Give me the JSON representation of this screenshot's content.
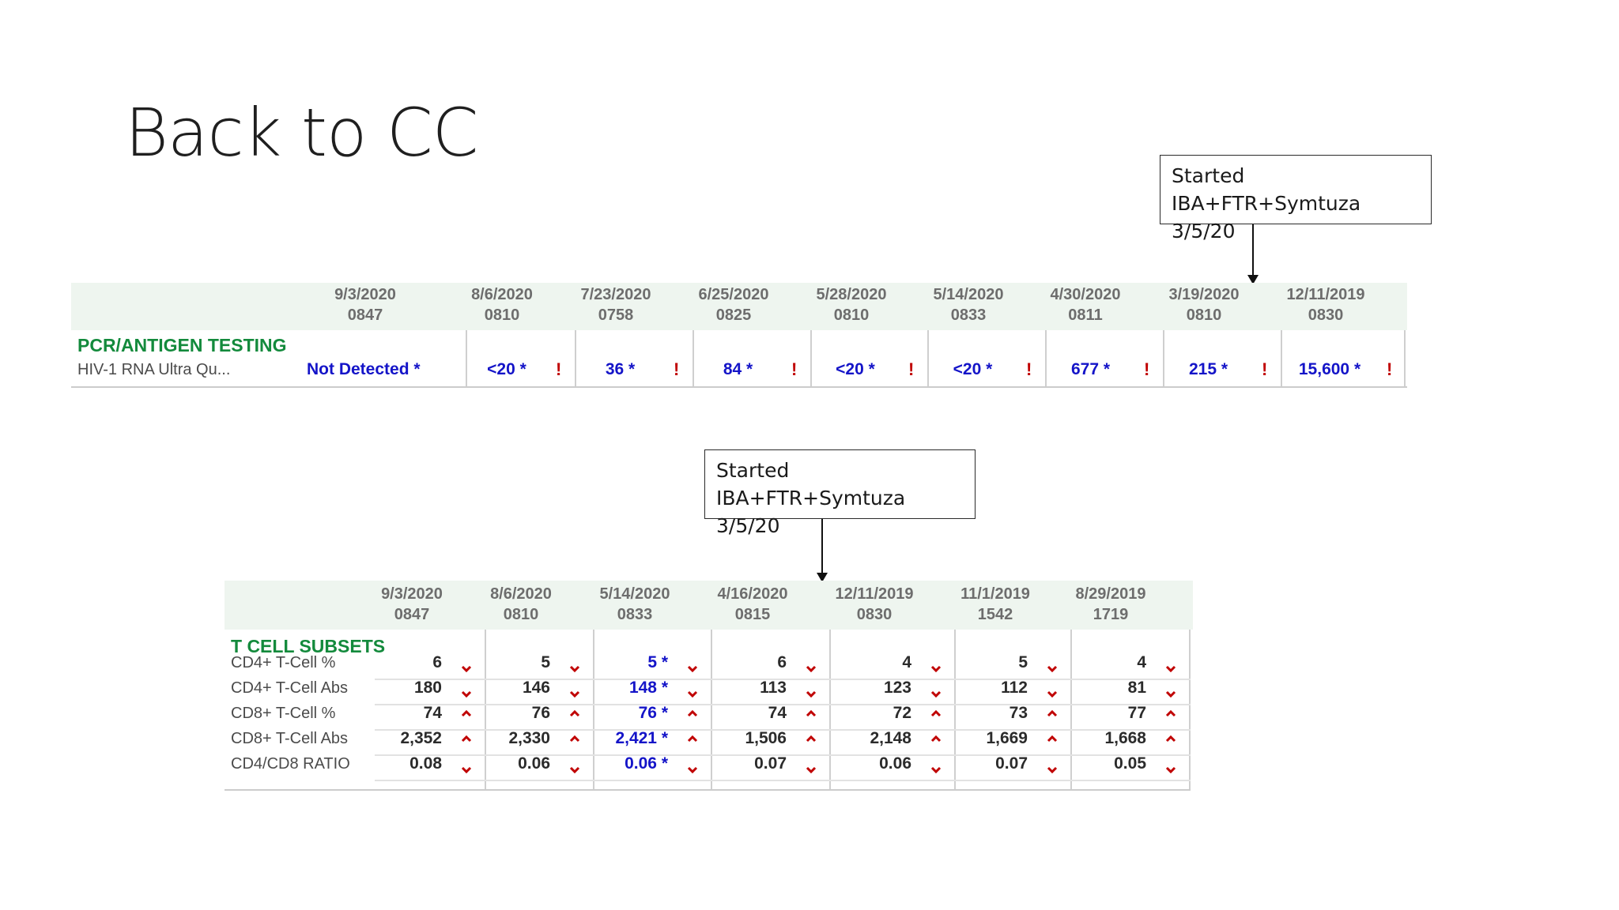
{
  "slide": {
    "title": "Back to CC"
  },
  "annotations": [
    {
      "line1": "Started",
      "line2": "IBA+FTR+Symtuza 3/5/20"
    },
    {
      "line1": "Started",
      "line2": "IBA+FTR+Symtuza 3/5/20"
    }
  ],
  "pcr_table": {
    "section_title": "PCR/ANTIGEN TESTING",
    "columns": [
      {
        "date": "9/3/2020",
        "time": "0847"
      },
      {
        "date": "8/6/2020",
        "time": "0810"
      },
      {
        "date": "7/23/2020",
        "time": "0758"
      },
      {
        "date": "6/25/2020",
        "time": "0825"
      },
      {
        "date": "5/28/2020",
        "time": "0810"
      },
      {
        "date": "5/14/2020",
        "time": "0833"
      },
      {
        "date": "4/30/2020",
        "time": "0811"
      },
      {
        "date": "3/19/2020",
        "time": "0810"
      },
      {
        "date": "12/11/2019",
        "time": "0830"
      }
    ],
    "rows": [
      {
        "label": "HIV-1 RNA Ultra Qu...",
        "values": [
          "Not Detected *",
          "<20 *",
          "36 *",
          "84 *",
          "<20 *",
          "<20 *",
          "677 *",
          "215 *",
          "15,600 *"
        ],
        "flag": "!"
      }
    ]
  },
  "tcell_table": {
    "section_title": "T CELL SUBSETS",
    "columns": [
      {
        "date": "9/3/2020",
        "time": "0847"
      },
      {
        "date": "8/6/2020",
        "time": "0810"
      },
      {
        "date": "5/14/2020",
        "time": "0833"
      },
      {
        "date": "4/16/2020",
        "time": "0815"
      },
      {
        "date": "12/11/2019",
        "time": "0830"
      },
      {
        "date": "11/1/2019",
        "time": "1542"
      },
      {
        "date": "8/29/2019",
        "time": "1719"
      }
    ],
    "rows": [
      {
        "label": "CD4+ T-Cell %",
        "values": [
          "6",
          "5",
          "5 *",
          "6",
          "4",
          "5",
          "4"
        ],
        "trend": "down"
      },
      {
        "label": "CD4+ T-Cell Abs",
        "values": [
          "180",
          "146",
          "148 *",
          "113",
          "123",
          "112",
          "81"
        ],
        "trend": "down"
      },
      {
        "label": "CD8+ T-Cell %",
        "values": [
          "74",
          "76",
          "76 *",
          "74",
          "72",
          "73",
          "77"
        ],
        "trend": "up"
      },
      {
        "label": "CD8+ T-Cell Abs",
        "values": [
          "2,352",
          "2,330",
          "2,421 *",
          "1,506",
          "2,148",
          "1,669",
          "1,668"
        ],
        "trend": "up"
      },
      {
        "label": "CD4/CD8 RATIO",
        "values": [
          "0.08",
          "0.06",
          "0.06 *",
          "0.07",
          "0.06",
          "0.07",
          "0.05"
        ],
        "trend": "down"
      }
    ]
  },
  "colors": {
    "section": "#138a3c",
    "flagged_value": "#1414c8",
    "flag": "#c00000",
    "header_bg": "#eef5ef"
  }
}
